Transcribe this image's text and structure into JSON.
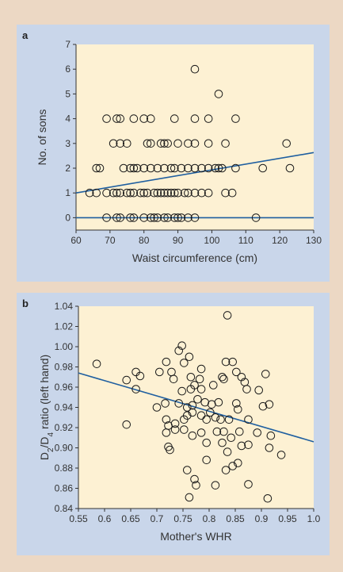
{
  "colors": {
    "page_background": "#ecd8c4",
    "panel_background": "#c9d6ea",
    "plot_background": "#fdf1d3",
    "marker_stroke": "#1a1a1a",
    "fit_line": "#1f5fa0",
    "axis": "#333333"
  },
  "chart_data": [
    {
      "panel_label": "a",
      "type": "scatter",
      "xlabel": "Waist circumference (cm)",
      "ylabel": "No. of sons",
      "xlim": [
        60,
        130
      ],
      "ylim": [
        -0.5,
        7
      ],
      "xticks": [
        60,
        70,
        80,
        90,
        100,
        110,
        120,
        130
      ],
      "yticks": [
        0,
        1,
        2,
        3,
        4,
        5,
        6,
        7
      ],
      "grid": false,
      "points": [
        [
          95,
          6
        ],
        [
          102,
          5
        ],
        [
          69,
          4
        ],
        [
          72,
          4
        ],
        [
          73,
          4
        ],
        [
          77,
          4
        ],
        [
          80,
          4
        ],
        [
          82,
          4
        ],
        [
          89,
          4
        ],
        [
          95,
          4
        ],
        [
          99,
          4
        ],
        [
          107,
          4
        ],
        [
          71,
          3
        ],
        [
          73,
          3
        ],
        [
          75,
          3
        ],
        [
          81,
          3
        ],
        [
          82,
          3
        ],
        [
          85,
          3
        ],
        [
          86,
          3
        ],
        [
          87,
          3
        ],
        [
          90,
          3
        ],
        [
          93,
          3
        ],
        [
          95,
          3
        ],
        [
          99,
          3
        ],
        [
          104,
          3
        ],
        [
          122,
          3
        ],
        [
          66,
          2
        ],
        [
          67,
          2
        ],
        [
          74,
          2
        ],
        [
          76,
          2
        ],
        [
          77,
          2
        ],
        [
          78,
          2
        ],
        [
          80,
          2
        ],
        [
          82,
          2
        ],
        [
          84,
          2
        ],
        [
          86,
          2
        ],
        [
          88,
          2
        ],
        [
          89,
          2
        ],
        [
          91,
          2
        ],
        [
          93,
          2
        ],
        [
          95,
          2
        ],
        [
          97,
          2
        ],
        [
          99,
          2
        ],
        [
          101,
          2
        ],
        [
          102,
          2
        ],
        [
          103,
          2
        ],
        [
          107,
          2
        ],
        [
          115,
          2
        ],
        [
          123,
          2
        ],
        [
          64,
          1
        ],
        [
          66,
          1
        ],
        [
          69,
          1
        ],
        [
          71,
          1
        ],
        [
          72,
          1
        ],
        [
          73,
          1
        ],
        [
          75,
          1
        ],
        [
          76,
          1
        ],
        [
          77,
          1
        ],
        [
          79,
          1
        ],
        [
          80,
          1
        ],
        [
          81,
          1
        ],
        [
          83,
          1
        ],
        [
          84,
          1
        ],
        [
          85,
          1
        ],
        [
          86,
          1
        ],
        [
          87,
          1
        ],
        [
          88,
          1
        ],
        [
          89,
          1
        ],
        [
          90,
          1
        ],
        [
          92,
          1
        ],
        [
          93,
          1
        ],
        [
          95,
          1
        ],
        [
          97,
          1
        ],
        [
          99,
          1
        ],
        [
          104,
          1
        ],
        [
          106,
          1
        ],
        [
          69,
          0
        ],
        [
          72,
          0
        ],
        [
          73,
          0
        ],
        [
          76,
          0
        ],
        [
          77,
          0
        ],
        [
          80,
          0
        ],
        [
          82,
          0
        ],
        [
          83,
          0
        ],
        [
          84,
          0
        ],
        [
          86,
          0
        ],
        [
          87,
          0
        ],
        [
          89,
          0
        ],
        [
          90,
          0
        ],
        [
          91,
          0
        ],
        [
          93,
          0
        ],
        [
          95,
          0
        ],
        [
          113,
          0
        ]
      ],
      "fit_lines": [
        {
          "x": [
            60,
            130
          ],
          "y": [
            1.0,
            2.63
          ]
        },
        {
          "x": [
            60,
            130
          ],
          "y": [
            0,
            0
          ]
        }
      ]
    },
    {
      "panel_label": "b",
      "type": "scatter",
      "xlabel": "Mother's WHR",
      "ylabel": "D2/D4 ratio (left hand)",
      "ylabel_parts": {
        "d": "D",
        "sub2": "2",
        "slash": "/D",
        "sub4": "4",
        "rest": " ratio (left hand)"
      },
      "xlim": [
        0.55,
        1.0
      ],
      "ylim": [
        0.84,
        1.04
      ],
      "xticks": [
        0.55,
        0.6,
        0.65,
        0.7,
        0.75,
        0.8,
        0.85,
        0.9,
        0.95,
        1.0
      ],
      "xtick_labels": [
        "0.55",
        "0.6",
        "0.65",
        "0.7",
        "0.75",
        "0.8",
        "0.85",
        "0.9",
        "0.95",
        "1.0"
      ],
      "yticks": [
        0.84,
        0.86,
        0.88,
        0.9,
        0.92,
        0.94,
        0.96,
        0.98,
        1.0,
        1.02,
        1.04
      ],
      "ytick_labels": [
        "0.84",
        "0.86",
        "0.88",
        "0.90",
        "0.92",
        "0.94",
        "0.96",
        "0.98",
        "1.00",
        "1.02",
        "1.04"
      ],
      "grid": false,
      "points": [
        [
          0.835,
          1.031
        ],
        [
          0.748,
          1.001
        ],
        [
          0.742,
          0.996
        ],
        [
          0.585,
          0.983
        ],
        [
          0.718,
          0.985
        ],
        [
          0.752,
          0.984
        ],
        [
          0.762,
          0.99
        ],
        [
          0.785,
          0.978
        ],
        [
          0.832,
          0.985
        ],
        [
          0.845,
          0.985
        ],
        [
          0.66,
          0.975
        ],
        [
          0.668,
          0.971
        ],
        [
          0.642,
          0.967
        ],
        [
          0.705,
          0.975
        ],
        [
          0.728,
          0.975
        ],
        [
          0.732,
          0.968
        ],
        [
          0.765,
          0.97
        ],
        [
          0.782,
          0.968
        ],
        [
          0.825,
          0.97
        ],
        [
          0.828,
          0.968
        ],
        [
          0.852,
          0.975
        ],
        [
          0.862,
          0.97
        ],
        [
          0.908,
          0.973
        ],
        [
          0.66,
          0.958
        ],
        [
          0.748,
          0.956
        ],
        [
          0.765,
          0.958
        ],
        [
          0.772,
          0.962
        ],
        [
          0.785,
          0.958
        ],
        [
          0.808,
          0.962
        ],
        [
          0.868,
          0.965
        ],
        [
          0.872,
          0.958
        ],
        [
          0.895,
          0.957
        ],
        [
          0.7,
          0.94
        ],
        [
          0.716,
          0.944
        ],
        [
          0.742,
          0.944
        ],
        [
          0.758,
          0.94
        ],
        [
          0.768,
          0.942
        ],
        [
          0.778,
          0.948
        ],
        [
          0.792,
          0.945
        ],
        [
          0.805,
          0.943
        ],
        [
          0.818,
          0.945
        ],
        [
          0.852,
          0.944
        ],
        [
          0.903,
          0.941
        ],
        [
          0.915,
          0.943
        ],
        [
          0.642,
          0.923
        ],
        [
          0.718,
          0.928
        ],
        [
          0.722,
          0.922
        ],
        [
          0.735,
          0.924
        ],
        [
          0.752,
          0.928
        ],
        [
          0.758,
          0.932
        ],
        [
          0.768,
          0.935
        ],
        [
          0.785,
          0.932
        ],
        [
          0.795,
          0.928
        ],
        [
          0.802,
          0.935
        ],
        [
          0.812,
          0.93
        ],
        [
          0.822,
          0.928
        ],
        [
          0.838,
          0.928
        ],
        [
          0.855,
          0.938
        ],
        [
          0.875,
          0.928
        ],
        [
          0.718,
          0.915
        ],
        [
          0.735,
          0.918
        ],
        [
          0.752,
          0.918
        ],
        [
          0.768,
          0.912
        ],
        [
          0.785,
          0.915
        ],
        [
          0.815,
          0.916
        ],
        [
          0.828,
          0.916
        ],
        [
          0.842,
          0.91
        ],
        [
          0.858,
          0.916
        ],
        [
          0.892,
          0.915
        ],
        [
          0.918,
          0.912
        ],
        [
          0.722,
          0.901
        ],
        [
          0.725,
          0.898
        ],
        [
          0.795,
          0.905
        ],
        [
          0.825,
          0.905
        ],
        [
          0.835,
          0.896
        ],
        [
          0.862,
          0.902
        ],
        [
          0.875,
          0.903
        ],
        [
          0.915,
          0.9
        ],
        [
          0.758,
          0.878
        ],
        [
          0.772,
          0.869
        ],
        [
          0.795,
          0.888
        ],
        [
          0.832,
          0.878
        ],
        [
          0.845,
          0.882
        ],
        [
          0.855,
          0.885
        ],
        [
          0.875,
          0.864
        ],
        [
          0.938,
          0.893
        ],
        [
          0.762,
          0.851
        ],
        [
          0.812,
          0.863
        ],
        [
          0.775,
          0.863
        ],
        [
          0.912,
          0.85
        ]
      ],
      "fit_lines": [
        {
          "x": [
            0.55,
            1.0
          ],
          "y": [
            0.974,
            0.906
          ]
        }
      ]
    }
  ]
}
